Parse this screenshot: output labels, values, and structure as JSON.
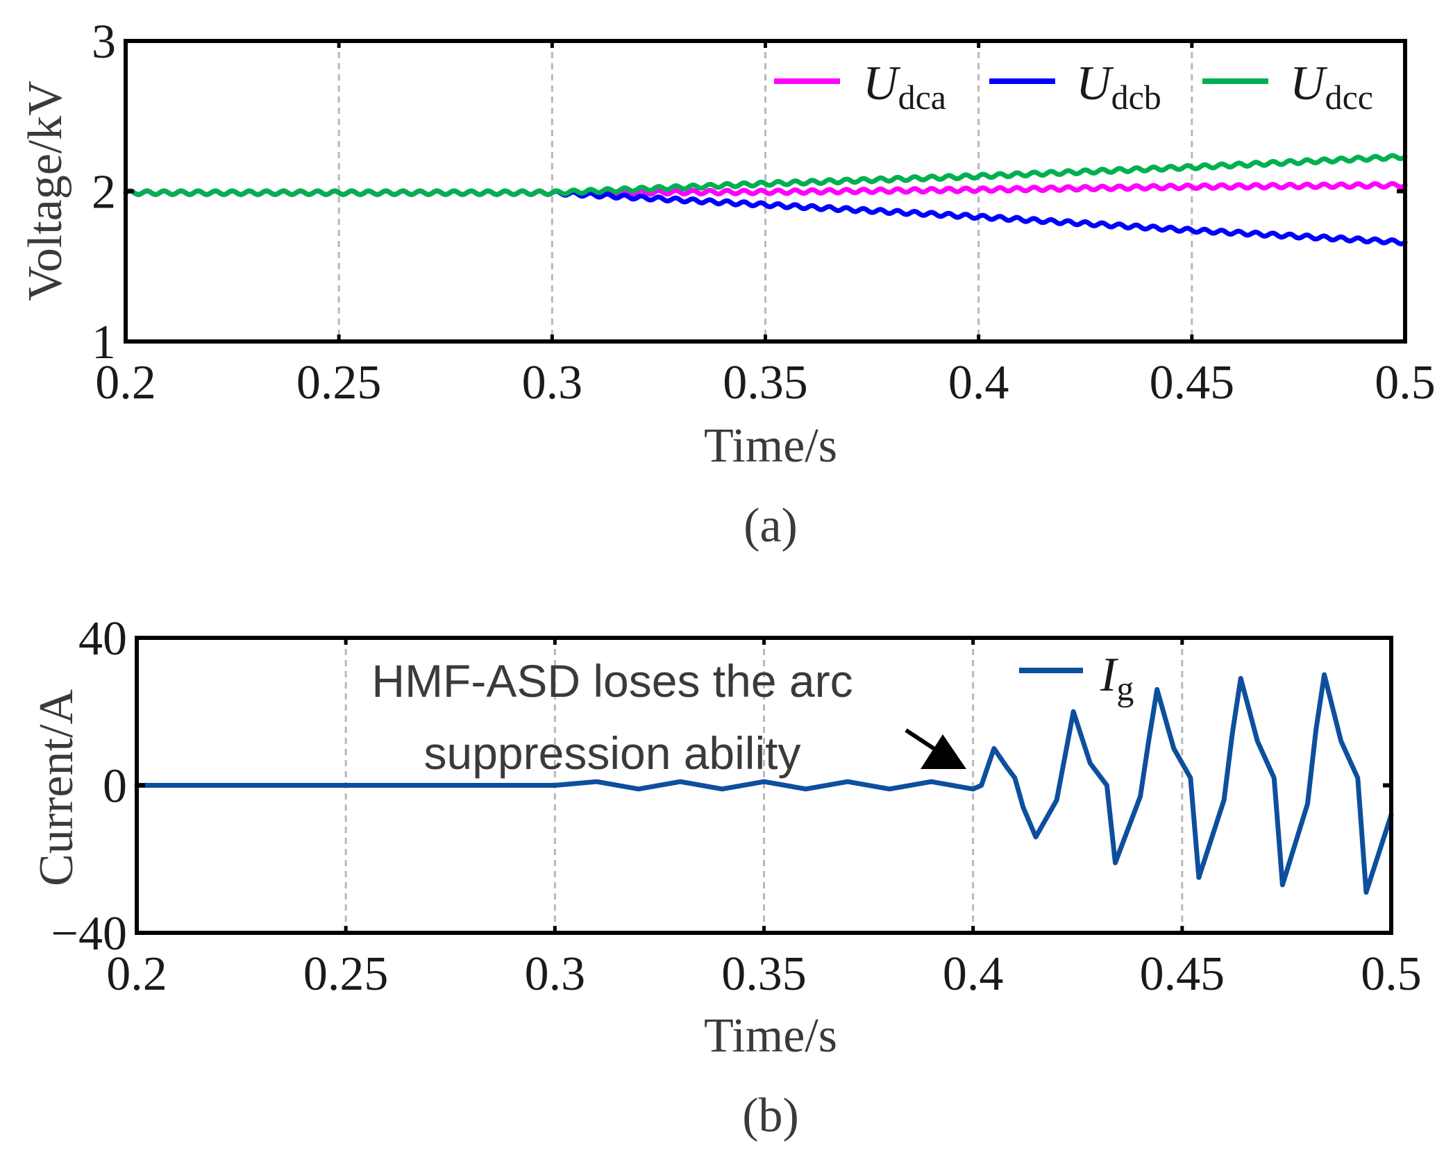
{
  "chart_data": [
    {
      "id": "a",
      "type": "line",
      "caption": "(a)",
      "xlabel": "Time/s",
      "ylabel": "Voltage/kV",
      "xlim": [
        0.2,
        0.5
      ],
      "ylim": [
        1,
        3
      ],
      "xticks": [
        0.2,
        0.25,
        0.3,
        0.35,
        0.4,
        0.45,
        0.5
      ],
      "xtick_labels": [
        "0.2",
        "0.25",
        "0.3",
        "0.35",
        "0.4",
        "0.45",
        "0.5"
      ],
      "yticks": [
        1,
        2,
        3
      ],
      "ytick_labels": [
        "1",
        "2",
        "3"
      ],
      "grid_x": true,
      "legend_position": "top-right",
      "series": [
        {
          "name": "U",
          "sub": "dca",
          "color": "#ff00ff",
          "x": [
            0.2,
            0.3,
            0.35,
            0.4,
            0.45,
            0.5
          ],
          "y": [
            1.99,
            1.99,
            1.995,
            2.01,
            2.03,
            2.04
          ]
        },
        {
          "name": "U",
          "sub": "dcb",
          "color": "#0000ff",
          "x": [
            0.2,
            0.3,
            0.35,
            0.4,
            0.45,
            0.5
          ],
          "y": [
            1.99,
            1.99,
            1.91,
            1.83,
            1.74,
            1.66
          ]
        },
        {
          "name": "U",
          "sub": "dcc",
          "color": "#00b050",
          "x": [
            0.2,
            0.3,
            0.35,
            0.4,
            0.45,
            0.5
          ],
          "y": [
            1.99,
            1.99,
            2.05,
            2.1,
            2.16,
            2.23
          ]
        }
      ]
    },
    {
      "id": "b",
      "type": "line",
      "caption": "(b)",
      "xlabel": "Time/s",
      "ylabel": "Current/A",
      "xlim": [
        0.2,
        0.5
      ],
      "ylim": [
        -40,
        40
      ],
      "xticks": [
        0.2,
        0.25,
        0.3,
        0.35,
        0.4,
        0.45,
        0.5
      ],
      "xtick_labels": [
        "0.2",
        "0.25",
        "0.3",
        "0.35",
        "0.4",
        "0.45",
        "0.5"
      ],
      "yticks": [
        -40,
        0,
        40
      ],
      "ytick_labels": [
        "−40",
        "0",
        "40"
      ],
      "grid_x": true,
      "legend_position": "top-right",
      "series": [
        {
          "name": "I",
          "sub": "g",
          "color": "#0d4f9e",
          "x": [
            0.2,
            0.3,
            0.31,
            0.32,
            0.33,
            0.34,
            0.35,
            0.36,
            0.37,
            0.38,
            0.39,
            0.4,
            0.402,
            0.405,
            0.408,
            0.41,
            0.412,
            0.415,
            0.42,
            0.422,
            0.424,
            0.428,
            0.432,
            0.434,
            0.44,
            0.442,
            0.444,
            0.448,
            0.452,
            0.454,
            0.46,
            0.462,
            0.464,
            0.468,
            0.472,
            0.474,
            0.48,
            0.482,
            0.484,
            0.488,
            0.492,
            0.494,
            0.5
          ],
          "y": [
            0,
            0,
            1,
            -1,
            1,
            -1,
            1,
            -1,
            1,
            -1,
            1,
            -1,
            0,
            10,
            5,
            2,
            -6,
            -14,
            -4,
            8,
            20,
            6,
            0,
            -21,
            -3,
            12,
            26,
            10,
            2,
            -25,
            -4,
            14,
            29,
            12,
            2,
            -27,
            -5,
            15,
            30,
            12,
            2,
            -29,
            -8
          ]
        }
      ],
      "annotation": {
        "lines": [
          "HMF-ASD loses the arc",
          "suppression ability"
        ],
        "points_to": {
          "x": 0.4,
          "y": 0
        }
      }
    }
  ]
}
